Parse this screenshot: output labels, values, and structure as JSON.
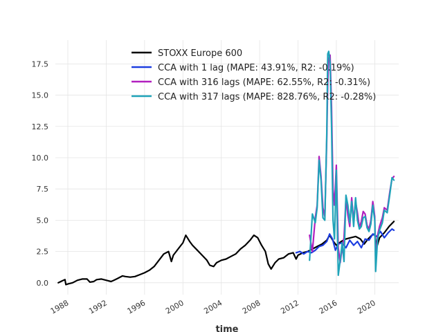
{
  "chart_data": {
    "type": "line",
    "xlabel": "time",
    "ylabel": "",
    "xlim": [
      1986.7,
      2022.5
    ],
    "ylim": [
      -0.95,
      19.4
    ],
    "x_ticks": [
      1988,
      1992,
      1996,
      2000,
      2004,
      2008,
      2012,
      2016,
      2020
    ],
    "y_ticks": [
      0.0,
      2.5,
      5.0,
      7.5,
      10.0,
      12.5,
      15.0,
      17.5
    ],
    "y_tick_labels": [
      "0.0",
      "2.5",
      "5.0",
      "7.5",
      "10.0",
      "12.5",
      "15.0",
      "17.5"
    ],
    "grid": true,
    "legend_position": "top-center",
    "series": [
      {
        "name": "STOXX Europe 600",
        "color": "#000000",
        "x": [
          1987.0,
          1987.4,
          1987.7,
          1987.8,
          1988.0,
          1988.5,
          1989.0,
          1989.5,
          1990.0,
          1990.3,
          1990.7,
          1991.0,
          1991.5,
          1992.0,
          1992.5,
          1992.8,
          1993.2,
          1993.7,
          1994.0,
          1994.5,
          1995.0,
          1995.5,
          1996.0,
          1996.5,
          1997.0,
          1997.5,
          1998.0,
          1998.5,
          1998.8,
          1999.0,
          1999.5,
          2000.0,
          2000.3,
          2000.7,
          2001.0,
          2001.5,
          2002.0,
          2002.5,
          2002.8,
          2003.2,
          2003.5,
          2004.0,
          2004.5,
          2005.0,
          2005.5,
          2006.0,
          2006.5,
          2007.0,
          2007.4,
          2007.8,
          2008.2,
          2008.6,
          2008.9,
          2009.2,
          2009.6,
          2010.0,
          2010.5,
          2011.0,
          2011.5,
          2011.8,
          2012.0,
          2012.5,
          2013.0,
          2013.5,
          2014.0,
          2014.5,
          2015.0,
          2015.3,
          2015.7,
          2016.0,
          2016.5,
          2017.0,
          2017.5,
          2018.0,
          2018.5,
          2018.9,
          2019.3,
          2019.7,
          2020.0,
          2020.2,
          2020.5,
          2021.0,
          2021.5,
          2022.0
        ],
        "y": [
          0.0,
          0.15,
          0.25,
          -0.15,
          -0.1,
          0.0,
          0.2,
          0.3,
          0.3,
          0.05,
          0.1,
          0.25,
          0.3,
          0.2,
          0.1,
          0.2,
          0.35,
          0.55,
          0.5,
          0.45,
          0.5,
          0.65,
          0.8,
          1.0,
          1.3,
          1.8,
          2.3,
          2.5,
          1.7,
          2.2,
          2.7,
          3.2,
          3.8,
          3.3,
          3.0,
          2.6,
          2.2,
          1.8,
          1.4,
          1.3,
          1.6,
          1.8,
          1.9,
          2.1,
          2.3,
          2.7,
          3.0,
          3.4,
          3.8,
          3.6,
          3.0,
          2.5,
          1.5,
          1.1,
          1.6,
          1.9,
          2.0,
          2.3,
          2.4,
          1.9,
          2.2,
          2.4,
          2.5,
          2.7,
          2.9,
          3.1,
          3.4,
          3.8,
          3.3,
          3.0,
          3.3,
          3.5,
          3.6,
          3.7,
          3.5,
          3.1,
          3.5,
          3.8,
          3.9,
          2.8,
          3.6,
          4.0,
          4.5,
          4.9
        ]
      },
      {
        "name": "CCA with 1 lag (MAPE: 43.91%, R2: -0.19%)",
        "color": "#1c3de0",
        "x": [
          2011.8,
          2012.2,
          2012.6,
          2013.0,
          2013.4,
          2013.8,
          2014.2,
          2014.6,
          2015.0,
          2015.3,
          2015.6,
          2015.9,
          2016.2,
          2016.6,
          2017.0,
          2017.4,
          2017.8,
          2018.2,
          2018.6,
          2019.0,
          2019.4,
          2019.8,
          2020.2,
          2020.6,
          2021.0,
          2021.4,
          2021.8,
          2022.0
        ],
        "y": [
          2.4,
          2.5,
          2.3,
          2.5,
          2.4,
          2.6,
          2.9,
          3.0,
          3.3,
          3.9,
          3.5,
          2.6,
          3.1,
          3.2,
          2.8,
          3.4,
          3.0,
          3.3,
          2.8,
          3.5,
          3.4,
          3.9,
          3.7,
          4.1,
          3.6,
          4.0,
          4.3,
          4.2
        ]
      },
      {
        "name": "CCA with 316 lags (MAPE: 62.55%, R2: -0.31%)",
        "color": "#b11fbf",
        "x": [
          2013.2,
          2013.5,
          2013.8,
          2014.0,
          2014.2,
          2014.4,
          2014.6,
          2014.8,
          2015.0,
          2015.1,
          2015.2,
          2015.35,
          2015.5,
          2015.65,
          2015.8,
          2016.0,
          2016.2,
          2016.4,
          2016.6,
          2016.8,
          2017.0,
          2017.2,
          2017.4,
          2017.6,
          2017.8,
          2018.0,
          2018.2,
          2018.4,
          2018.6,
          2018.8,
          2019.0,
          2019.2,
          2019.4,
          2019.6,
          2019.8,
          2020.0,
          2020.1,
          2020.3,
          2020.5,
          2020.8,
          2021.0,
          2021.3,
          2021.6,
          2021.8,
          2022.0
        ],
        "y": [
          3.8,
          2.5,
          5.2,
          6.2,
          10.1,
          8.5,
          6.0,
          5.3,
          11.5,
          16.0,
          17.9,
          18.2,
          14.0,
          7.5,
          6.2,
          9.4,
          2.8,
          1.6,
          2.8,
          3.6,
          6.8,
          5.4,
          4.5,
          6.8,
          4.9,
          6.5,
          5.6,
          4.4,
          4.9,
          5.7,
          5.5,
          4.6,
          4.3,
          5.0,
          6.5,
          5.3,
          1.8,
          3.8,
          4.5,
          5.2,
          6.0,
          5.8,
          7.4,
          8.3,
          8.5
        ]
      },
      {
        "name": "CCA with 317 lags (MAPE: 828.76%, R2: -0.28%)",
        "color": "#1fa3b9",
        "x": [
          2013.2,
          2013.5,
          2013.8,
          2014.0,
          2014.2,
          2014.4,
          2014.6,
          2014.8,
          2015.0,
          2015.1,
          2015.2,
          2015.35,
          2015.5,
          2015.65,
          2015.8,
          2016.0,
          2016.2,
          2016.4,
          2016.6,
          2016.8,
          2017.0,
          2017.2,
          2017.4,
          2017.6,
          2017.8,
          2018.0,
          2018.2,
          2018.4,
          2018.6,
          2018.8,
          2019.0,
          2019.2,
          2019.4,
          2019.6,
          2019.8,
          2020.0,
          2020.1,
          2020.3,
          2020.5,
          2020.8,
          2021.0,
          2021.3,
          2021.6,
          2021.8,
          2022.0
        ],
        "y": [
          1.8,
          5.5,
          4.8,
          6.0,
          9.8,
          8.2,
          5.2,
          5.0,
          12.0,
          18.3,
          18.5,
          17.6,
          12.5,
          5.0,
          3.5,
          9.0,
          0.6,
          1.8,
          3.2,
          1.7,
          7.0,
          6.2,
          4.8,
          6.5,
          4.5,
          6.8,
          5.0,
          4.3,
          4.5,
          5.2,
          5.3,
          4.4,
          4.1,
          4.7,
          6.2,
          5.0,
          0.9,
          3.5,
          4.2,
          4.8,
          5.8,
          5.6,
          7.2,
          8.4,
          8.2
        ]
      }
    ]
  }
}
